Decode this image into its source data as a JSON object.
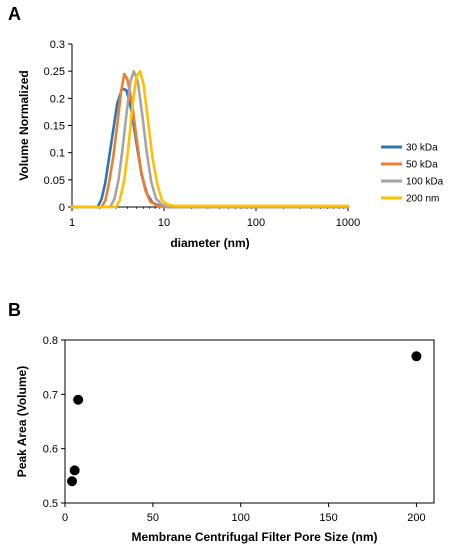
{
  "panels": [
    {
      "letter": "A"
    },
    {
      "letter": "B"
    }
  ],
  "chart_data": [
    {
      "type": "line",
      "xlabel": "diameter (nm)",
      "ylabel": "Volume Normalized",
      "xscale": "log",
      "xlim": [
        1,
        1000
      ],
      "ylim": [
        0,
        0.3
      ],
      "xticks": [
        1,
        10,
        100,
        1000
      ],
      "xtick_labels": [
        "1",
        "10",
        "100",
        "1000"
      ],
      "yticks": [
        0,
        0.05,
        0.1,
        0.15,
        0.2,
        0.25,
        0.3
      ],
      "ytick_labels": [
        "0",
        "0.05",
        "0.1",
        "0.15",
        "0.2",
        "0.25",
        "0.3"
      ],
      "grid": false,
      "legend_position": "right",
      "series": [
        {
          "name": "30 kDa",
          "color": "#2e75b6",
          "x": [
            1,
            1.9,
            2.1,
            2.3,
            2.5,
            2.8,
            3.1,
            3.5,
            3.9,
            4.4,
            5.0,
            5.7,
            6.5,
            7.5,
            9,
            11,
            1000
          ],
          "y": [
            0,
            0,
            0.015,
            0.045,
            0.085,
            0.14,
            0.19,
            0.218,
            0.215,
            0.18,
            0.12,
            0.06,
            0.025,
            0.008,
            0.002,
            0,
            0
          ]
        },
        {
          "name": "50 kDa",
          "color": "#ed7d31",
          "x": [
            1,
            2.1,
            2.3,
            2.5,
            2.8,
            3.1,
            3.4,
            3.7,
            4.0,
            4.5,
            5.0,
            5.6,
            6.3,
            7.1,
            8.5,
            10,
            1000
          ],
          "y": [
            0,
            0,
            0.012,
            0.04,
            0.09,
            0.15,
            0.21,
            0.245,
            0.235,
            0.19,
            0.13,
            0.07,
            0.03,
            0.01,
            0.002,
            0,
            0
          ]
        },
        {
          "name": "100 kDa",
          "color": "#a5a5a5",
          "x": [
            1,
            2.6,
            2.9,
            3.2,
            3.5,
            3.9,
            4.3,
            4.7,
            5.2,
            5.8,
            6.5,
            7.3,
            8.2,
            9.5,
            11,
            13,
            1000
          ],
          "y": [
            0,
            0,
            0.015,
            0.05,
            0.1,
            0.17,
            0.23,
            0.25,
            0.23,
            0.17,
            0.1,
            0.045,
            0.015,
            0.004,
            0.001,
            0,
            0
          ]
        },
        {
          "name": "200 nm",
          "color": "#ffc000",
          "x": [
            1,
            3.0,
            3.3,
            3.7,
            4.1,
            4.5,
            5.0,
            5.5,
            6.0,
            6.7,
            7.5,
            8.5,
            9.5,
            11,
            13,
            100,
            1000
          ],
          "y": [
            0,
            0,
            0.012,
            0.05,
            0.11,
            0.18,
            0.24,
            0.25,
            0.225,
            0.16,
            0.09,
            0.04,
            0.012,
            0.004,
            0.002,
            0.002,
            0.002
          ]
        }
      ]
    },
    {
      "type": "scatter",
      "xlabel": "Membrane Centrifugal Filter Pore Size (nm)",
      "ylabel": "Peak Area (Volume)",
      "xlim": [
        0,
        210
      ],
      "ylim": [
        0.5,
        0.8
      ],
      "xticks": [
        0,
        50,
        100,
        150,
        200
      ],
      "xtick_labels": [
        "0",
        "50",
        "100",
        "150",
        "200"
      ],
      "yticks": [
        0.5,
        0.6,
        0.7,
        0.8
      ],
      "ytick_labels": [
        "0.5",
        "0.6",
        "0.7",
        "0.8"
      ],
      "grid": false,
      "marker_color": "#000000",
      "points": [
        {
          "x": 4,
          "y": 0.54
        },
        {
          "x": 5.5,
          "y": 0.56
        },
        {
          "x": 7.5,
          "y": 0.69
        },
        {
          "x": 200,
          "y": 0.77
        }
      ]
    }
  ]
}
